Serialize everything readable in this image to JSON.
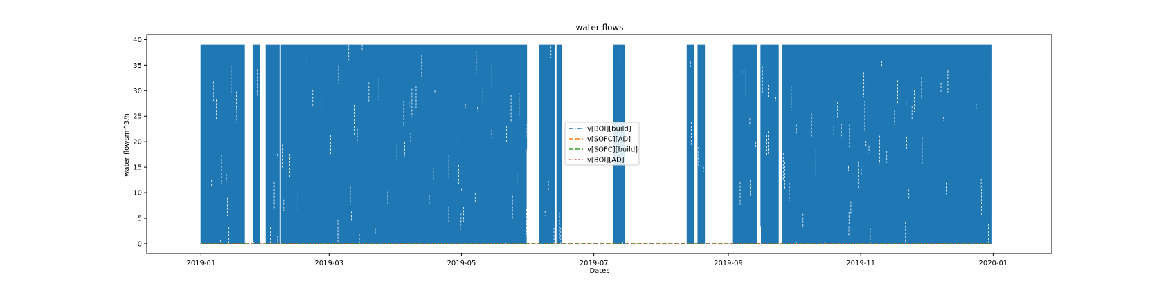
{
  "chart_data": {
    "type": "line",
    "title": "water flows",
    "xlabel": "Dates",
    "ylabel": "water flowsm^3/h",
    "x_range": [
      "2018-12-07",
      "2020-01-28"
    ],
    "ylim": [
      -1.9,
      41.0
    ],
    "x_ticks": [
      "2019-01",
      "2019-03",
      "2019-05",
      "2019-07",
      "2019-09",
      "2019-11",
      "2020-01"
    ],
    "y_ticks": [
      0,
      5,
      10,
      15,
      20,
      25,
      30,
      35,
      40
    ],
    "grid": false,
    "legend_position": "center",
    "series": [
      {
        "name": "v[BOI][build]",
        "color": "#1f77b4",
        "linestyle": "dashdot",
        "value_range": [
          0,
          39
        ],
        "active_periods": [
          [
            "2019-01-01",
            "2019-01-21"
          ],
          [
            "2019-01-25",
            "2019-01-28"
          ],
          [
            "2019-01-31",
            "2019-02-06"
          ],
          [
            "2019-02-07",
            "2019-05-31"
          ],
          [
            "2019-06-06",
            "2019-06-13"
          ],
          [
            "2019-06-14",
            "2019-06-16"
          ],
          [
            "2019-07-10",
            "2019-07-15"
          ],
          [
            "2019-08-13",
            "2019-08-16"
          ],
          [
            "2019-08-18",
            "2019-08-21"
          ],
          [
            "2019-09-03",
            "2019-09-14"
          ],
          [
            "2019-09-16",
            "2019-09-24"
          ],
          [
            "2019-09-26",
            "2019-12-31"
          ]
        ]
      },
      {
        "name": "v[SOFC][AD]",
        "color": "#ff7f0e",
        "linestyle": "dashed",
        "value_range": [
          0,
          0
        ],
        "x": [
          "2019-01-01",
          "2019-12-31"
        ],
        "y": [
          0,
          0
        ]
      },
      {
        "name": "v[SOFC][build]",
        "color": "#2ca02c",
        "linestyle": "dashed",
        "value_range": [
          0,
          0
        ],
        "x": [
          "2019-01-01",
          "2019-12-31"
        ],
        "y": [
          0,
          0
        ]
      },
      {
        "name": "v[BOI][AD]",
        "color": "#d62728",
        "linestyle": "dotted",
        "value_range": [
          0,
          0
        ],
        "x": [
          "2019-01-01",
          "2019-12-31"
        ],
        "y": [
          0,
          0
        ]
      }
    ]
  }
}
